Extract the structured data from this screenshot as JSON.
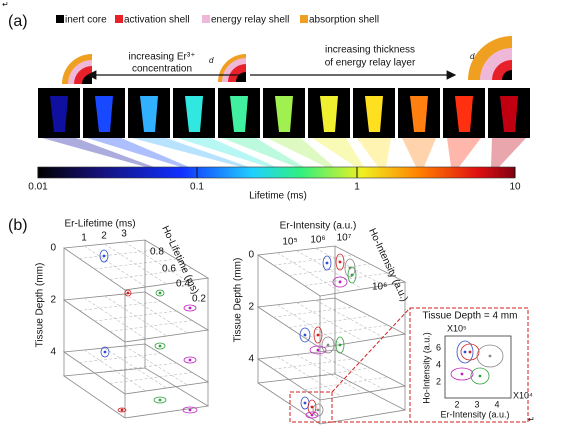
{
  "paragraph_marks": [
    "↵",
    "↵"
  ],
  "panel_a": {
    "label": "(a)",
    "legend": [
      "inert core",
      "activation shell",
      "energy relay shell",
      "absorption shell"
    ],
    "left_arrow": [
      "increasing Er³⁺",
      "concentration"
    ],
    "right_arrow": [
      "increasing thickness",
      "of energy relay layer"
    ],
    "d_labels": [
      "d",
      "d"
    ],
    "colorbar": {
      "ticks": [
        "0.01",
        "0.1",
        "1",
        "10"
      ],
      "label": "Lifetime (ms)"
    }
  },
  "panel_b": {
    "label": "(b)",
    "left": {
      "x_label": "Er-Lifetime (ms)",
      "x_ticks": [
        "1",
        "2",
        "3"
      ],
      "y_label": "Ho-Lifetime (ms)",
      "y_ticks": [
        "0.8",
        "0.6",
        "0.4",
        "0.2"
      ],
      "z_label": "Tissue Depth (mm)",
      "z_ticks": [
        "0",
        "2",
        "4"
      ]
    },
    "right": {
      "x_label": "Er-Intensity (a.u.)",
      "x_ticks": [
        "10⁵",
        "10⁶",
        "10⁷"
      ],
      "y_label": "Ho-Intensity (a.u.)",
      "y_ticks": [
        "10⁶"
      ],
      "z_label": "Tissue Depth (mm)",
      "z_ticks": [
        "0",
        "2",
        "4"
      ]
    },
    "inset": {
      "title": "Tissue Depth = 4 mm",
      "y_scale": "X10⁵",
      "y_label": "Ho-Intensity (a.u.)",
      "y_ticks": [
        "6",
        "4",
        "2"
      ],
      "x_scale": "X10⁴",
      "x_label": "Er-Intensity (a.u.)",
      "x_ticks": [
        "2",
        "3",
        "4"
      ]
    }
  }
}
